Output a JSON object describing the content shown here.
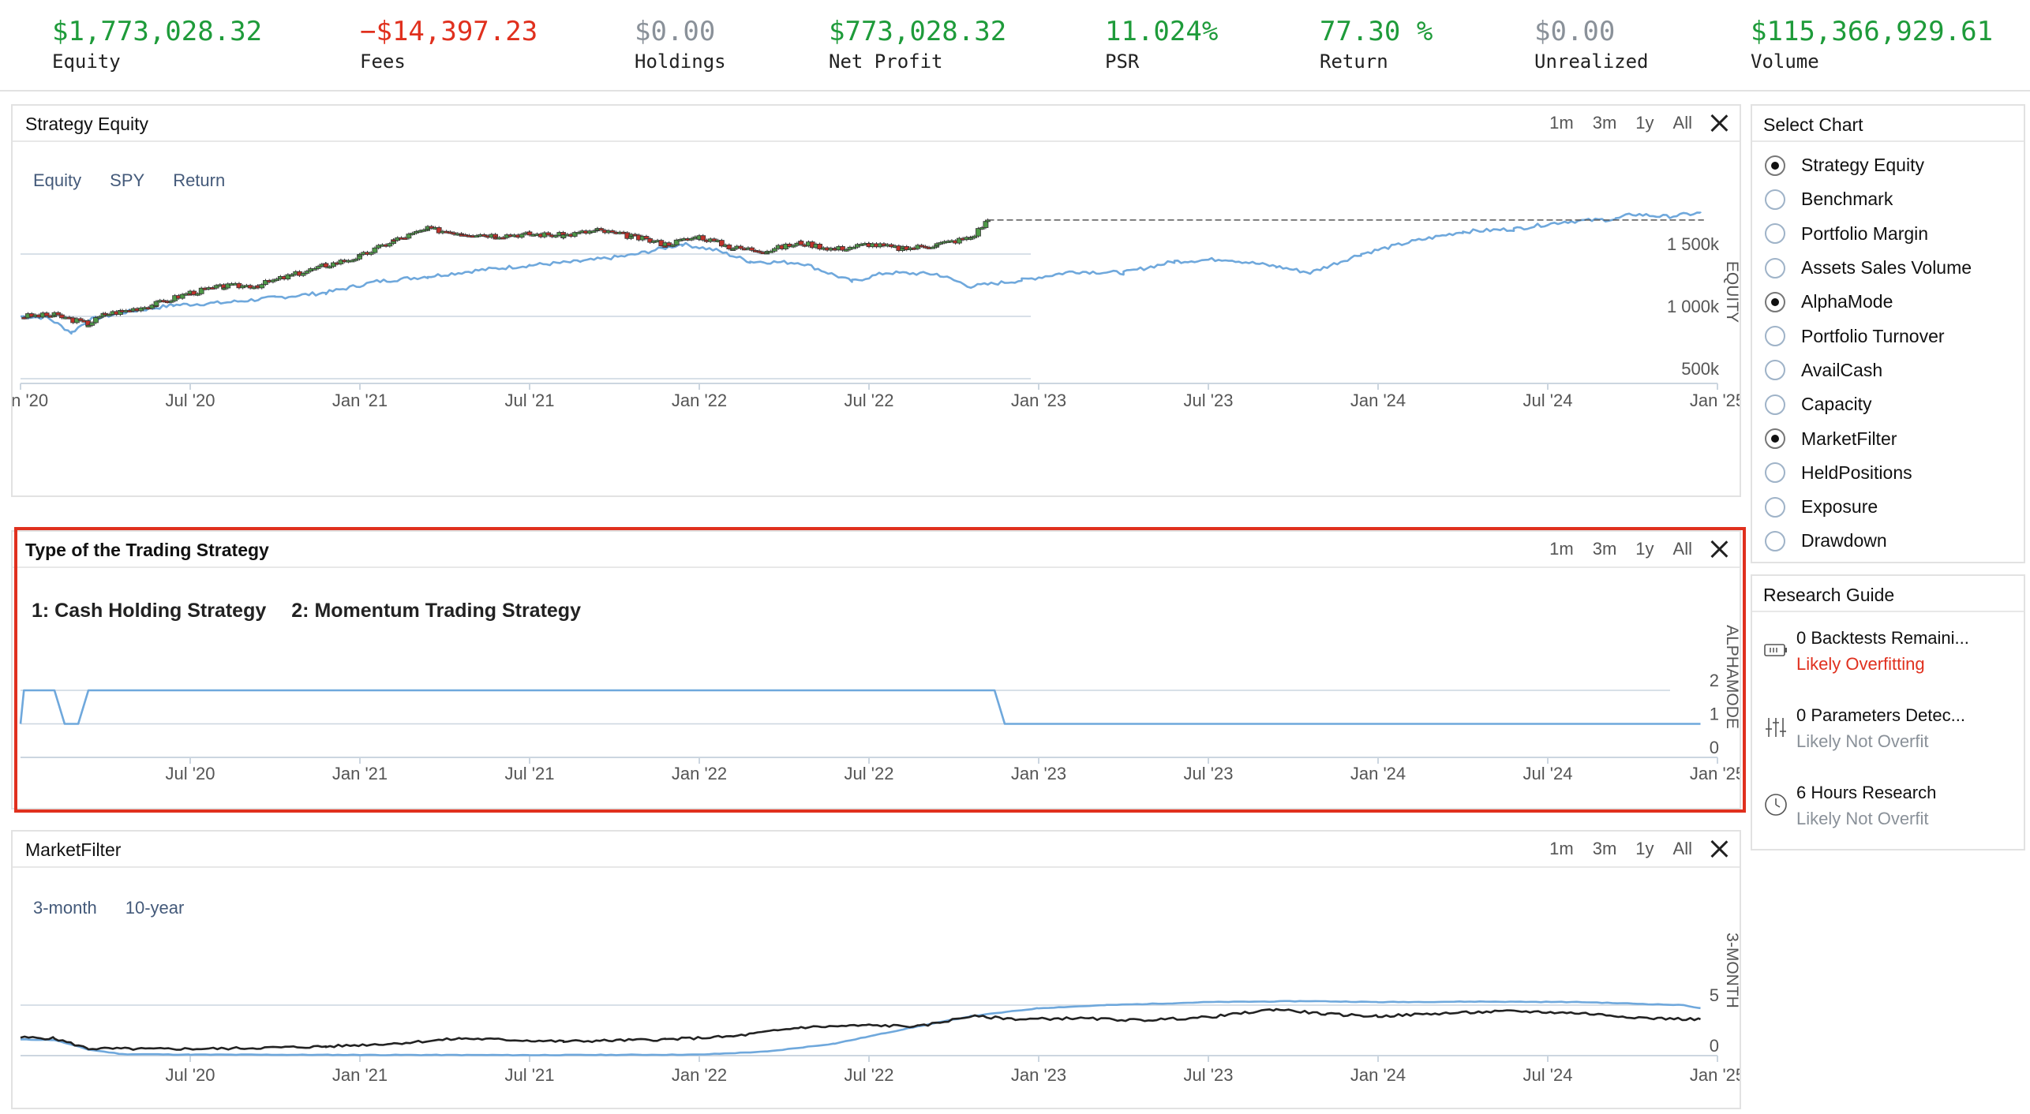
{
  "stats": [
    {
      "value": "$1,773,028.32",
      "label": "Equity",
      "color": "#1e9b3a"
    },
    {
      "value": "−$14,397.23",
      "label": "Fees",
      "color": "#e0301e"
    },
    {
      "value": "$0.00",
      "label": "Holdings",
      "color": "#8a9199"
    },
    {
      "value": "$773,028.32",
      "label": "Net Profit",
      "color": "#1e9b3a"
    },
    {
      "value": "11.024%",
      "label": "PSR",
      "color": "#1e9b3a"
    },
    {
      "value": "77.30 %",
      "label": "Return",
      "color": "#1e9b3a"
    },
    {
      "value": "$0.00",
      "label": "Unrealized",
      "color": "#8a9199"
    },
    {
      "value": "$115,366,929.61",
      "label": "Volume",
      "color": "#1e9b3a"
    }
  ],
  "range_buttons": [
    "1m",
    "3m",
    "1y",
    "All"
  ],
  "colors": {
    "up_candle": "#4f9a48",
    "down_candle": "#c0332b",
    "spy_line": "#6fa8dc",
    "filter_long": "#222222",
    "highlight": "#e0301e"
  },
  "panels": {
    "equity": {
      "title": "Strategy Equity",
      "legend": [
        "Equity",
        "SPY",
        "Return"
      ]
    },
    "alpha": {
      "title": "Type of the Trading Strategy",
      "legend": [
        "1: Cash Holding Strategy",
        "2: Momentum Trading Strategy"
      ]
    },
    "filter": {
      "title": "MarketFilter",
      "legend": [
        "3-month",
        "10-year"
      ]
    }
  },
  "chart_data": [
    {
      "type": "line",
      "title": "Strategy Equity",
      "ylabel": "EQUITY",
      "x_ticks": [
        "Jan '20",
        "Jul '20",
        "Jan '21",
        "Jul '21",
        "Jan '22",
        "Jul '22",
        "Jan '23",
        "Jul '23",
        "Jan '24",
        "Jul '24",
        "Jan '25"
      ],
      "y_ticks": [
        "1 500k",
        "1 000k",
        "500k"
      ],
      "y_tick_values": [
        1500000,
        1000000,
        500000
      ],
      "ylim": [
        500000,
        1850000
      ],
      "series": [
        {
          "name": "Equity",
          "style": "candlestick",
          "x": [
            2020.0,
            2020.1,
            2020.2,
            2020.25,
            2020.3,
            2020.4,
            2020.5,
            2020.6,
            2020.7,
            2020.8,
            2020.9,
            2021.0,
            2021.1,
            2021.2,
            2021.3,
            2021.4,
            2021.5,
            2021.6,
            2021.7,
            2021.8,
            2021.9,
            2022.0,
            2022.1,
            2022.2,
            2022.3,
            2022.4,
            2022.5,
            2022.6,
            2022.7,
            2022.8,
            2022.85
          ],
          "y": [
            1000000,
            1010000,
            940000,
            1020000,
            1040000,
            1100000,
            1190000,
            1240000,
            1250000,
            1330000,
            1410000,
            1480000,
            1610000,
            1700000,
            1670000,
            1650000,
            1660000,
            1650000,
            1690000,
            1640000,
            1580000,
            1640000,
            1550000,
            1530000,
            1590000,
            1540000,
            1580000,
            1540000,
            1580000,
            1630000,
            1773028
          ]
        },
        {
          "name": "SPY",
          "x": [
            2020.0,
            2020.08,
            2020.15,
            2020.2,
            2020.3,
            2020.45,
            2020.6,
            2020.75,
            2020.9,
            2021.05,
            2021.2,
            2021.35,
            2021.5,
            2021.65,
            2021.8,
            2021.95,
            2022.05,
            2022.15,
            2022.3,
            2022.45,
            2022.55,
            2022.7,
            2022.8,
            2022.95,
            2023.1,
            2023.25,
            2023.4,
            2023.55,
            2023.7,
            2023.8,
            2023.95,
            2024.1,
            2024.25,
            2024.4,
            2024.55,
            2024.7,
            2024.75,
            2024.85,
            2024.95
          ],
          "y": [
            1000000,
            990000,
            870000,
            970000,
            1030000,
            1090000,
            1110000,
            1150000,
            1190000,
            1280000,
            1320000,
            1370000,
            1410000,
            1440000,
            1490000,
            1580000,
            1530000,
            1440000,
            1430000,
            1280000,
            1350000,
            1340000,
            1240000,
            1290000,
            1360000,
            1350000,
            1440000,
            1460000,
            1400000,
            1350000,
            1500000,
            1600000,
            1680000,
            1700000,
            1760000,
            1780000,
            1820000,
            1800000,
            1830000
          ]
        }
      ]
    },
    {
      "type": "line",
      "title": "Type of the Trading Strategy",
      "ylabel": "ALPHAMODE",
      "x_ticks": [
        "Jul '20",
        "Jan '21",
        "Jul '21",
        "Jan '22",
        "Jul '22",
        "Jan '23",
        "Jul '23",
        "Jan '24",
        "Jul '24",
        "Jan '25"
      ],
      "y_ticks": [
        "2",
        "1",
        "0"
      ],
      "y_tick_values": [
        2,
        1,
        0
      ],
      "ylim": [
        0,
        2
      ],
      "series": [
        {
          "name": "AlphaMode",
          "x": [
            2020.0,
            2020.01,
            2020.1,
            2020.13,
            2020.17,
            2020.2,
            2020.22,
            2022.87,
            2022.9,
            2024.95
          ],
          "y": [
            1,
            2,
            2,
            1,
            1,
            2,
            2,
            2,
            1,
            1
          ]
        }
      ]
    },
    {
      "type": "line",
      "title": "MarketFilter",
      "ylabel": "3-MONTH",
      "x_ticks": [
        "Jul '20",
        "Jan '21",
        "Jul '21",
        "Jan '22",
        "Jul '22",
        "Jan '23",
        "Jul '23",
        "Jan '24",
        "Jul '24",
        "Jan '25"
      ],
      "y_ticks": [
        "5",
        "0"
      ],
      "y_tick_values": [
        5,
        0
      ],
      "ylim": [
        0,
        6
      ],
      "series": [
        {
          "name": "3-month",
          "x": [
            2020.0,
            2020.1,
            2020.2,
            2020.3,
            2020.5,
            2021.0,
            2021.5,
            2022.0,
            2022.2,
            2022.4,
            2022.6,
            2022.8,
            2023.0,
            2023.2,
            2023.5,
            2023.8,
            2024.0,
            2024.3,
            2024.6,
            2024.9,
            2024.95
          ],
          "y": [
            1.6,
            1.55,
            0.6,
            0.15,
            0.1,
            0.07,
            0.05,
            0.1,
            0.4,
            1.2,
            2.6,
            3.9,
            4.7,
            5.0,
            5.3,
            5.4,
            5.3,
            5.35,
            5.3,
            5.0,
            4.7
          ]
        },
        {
          "name": "10-year",
          "x": [
            2020.0,
            2020.1,
            2020.2,
            2020.4,
            2020.6,
            2020.9,
            2021.1,
            2021.3,
            2021.6,
            2021.9,
            2022.1,
            2022.3,
            2022.5,
            2022.65,
            2022.8,
            2022.95,
            2023.1,
            2023.3,
            2023.5,
            2023.7,
            2023.85,
            2024.0,
            2024.2,
            2024.4,
            2024.6,
            2024.8,
            2024.95
          ],
          "y": [
            1.8,
            1.7,
            0.7,
            0.65,
            0.7,
            0.9,
            1.2,
            1.7,
            1.4,
            1.6,
            1.9,
            2.8,
            3.0,
            2.9,
            3.9,
            3.6,
            3.7,
            3.5,
            3.8,
            4.6,
            4.1,
            3.9,
            4.2,
            4.4,
            4.2,
            3.7,
            3.6
          ]
        }
      ]
    }
  ],
  "side": {
    "select_chart_title": "Select Chart",
    "chart_options": [
      {
        "label": "Strategy Equity",
        "checked": true
      },
      {
        "label": "Benchmark",
        "checked": false
      },
      {
        "label": "Portfolio Margin",
        "checked": false
      },
      {
        "label": "Assets Sales Volume",
        "checked": false
      },
      {
        "label": "AlphaMode",
        "checked": true
      },
      {
        "label": "Portfolio Turnover",
        "checked": false
      },
      {
        "label": "AvailCash",
        "checked": false
      },
      {
        "label": "Capacity",
        "checked": false
      },
      {
        "label": "MarketFilter",
        "checked": true
      },
      {
        "label": "HeldPositions",
        "checked": false
      },
      {
        "label": "Exposure",
        "checked": false
      },
      {
        "label": "Drawdown",
        "checked": false
      }
    ],
    "research_title": "Research Guide",
    "research_items": [
      {
        "icon": "battery-icon",
        "line1": "0 Backtests Remaini...",
        "line2": "Likely Overfitting",
        "line2_color": "#e0301e"
      },
      {
        "icon": "sliders-icon",
        "line1": "0 Parameters Detec...",
        "line2": "Likely Not Overfit",
        "line2_color": "#8a9199"
      },
      {
        "icon": "clock-icon",
        "line1": "6 Hours Research",
        "line2": "Likely Not Overfit",
        "line2_color": "#8a9199"
      }
    ]
  }
}
